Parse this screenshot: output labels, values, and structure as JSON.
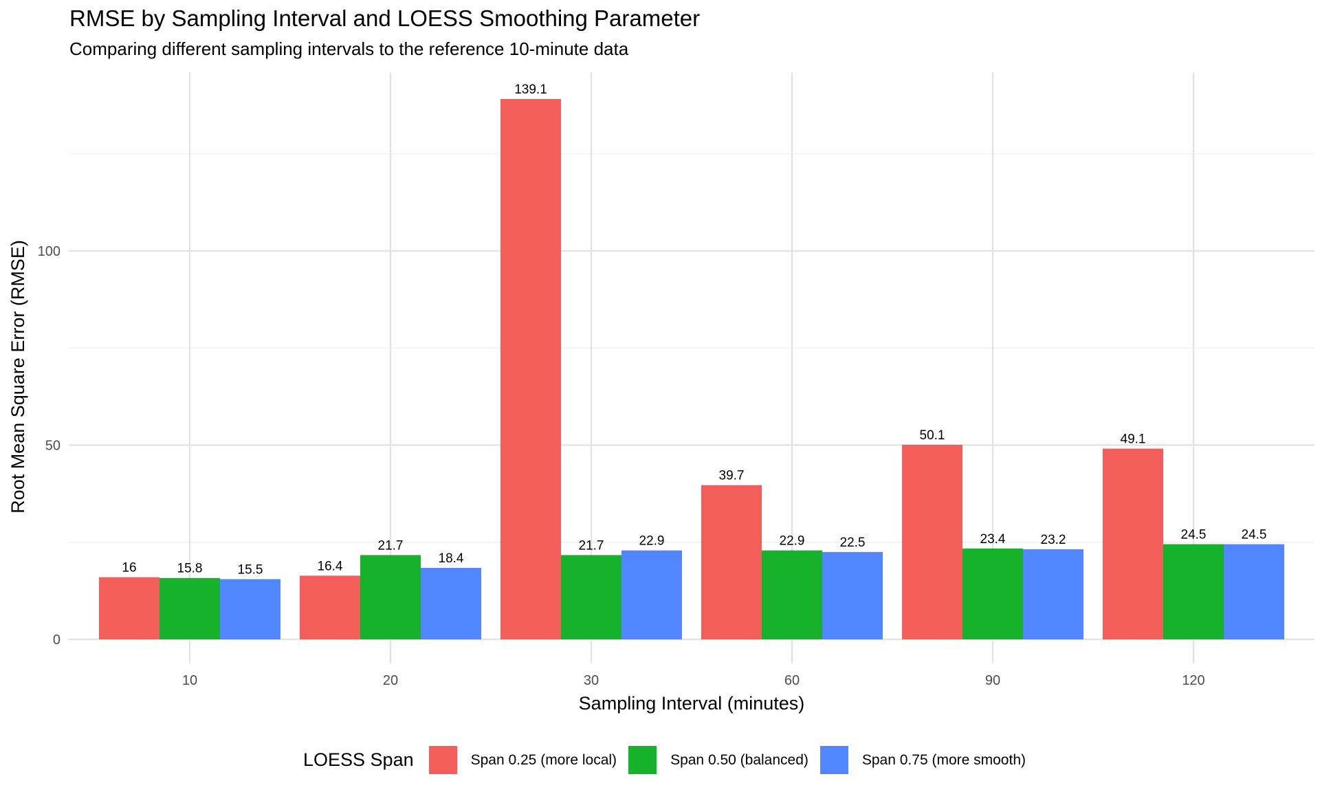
{
  "chart_data": {
    "type": "bar",
    "title": "RMSE by Sampling Interval and LOESS Smoothing Parameter",
    "subtitle": "Comparing different sampling intervals to the reference 10-minute data",
    "xlabel": "Sampling Interval (minutes)",
    "ylabel": "Root Mean Square Error (RMSE)",
    "categories": [
      "10",
      "20",
      "30",
      "60",
      "90",
      "120"
    ],
    "ylim": [
      0,
      139.1
    ],
    "yticks": [
      0,
      50,
      100
    ],
    "y_tick_labels": [
      "0",
      "50",
      "100"
    ],
    "grid": true,
    "legend": {
      "title": "LOESS Span",
      "placement": "bottom"
    },
    "series": [
      {
        "name": "Span 0.25 (more local)",
        "color": "#F35E5A",
        "values": [
          16,
          16.4,
          139.1,
          39.7,
          50.1,
          49.1
        ],
        "labels": [
          "16",
          "16.4",
          "139.1",
          "39.7",
          "50.1",
          "49.1"
        ]
      },
      {
        "name": "Span 0.50 (balanced)",
        "color": "#17B12B",
        "values": [
          15.8,
          21.7,
          21.7,
          22.9,
          23.4,
          24.5
        ],
        "labels": [
          "15.8",
          "21.7",
          "21.7",
          "22.9",
          "23.4",
          "24.5"
        ]
      },
      {
        "name": "Span 0.75 (more smooth)",
        "color": "#5086FF",
        "values": [
          15.5,
          18.4,
          22.9,
          22.5,
          23.2,
          24.5
        ],
        "labels": [
          "15.5",
          "18.4",
          "22.9",
          "22.5",
          "23.2",
          "24.5"
        ]
      }
    ]
  }
}
